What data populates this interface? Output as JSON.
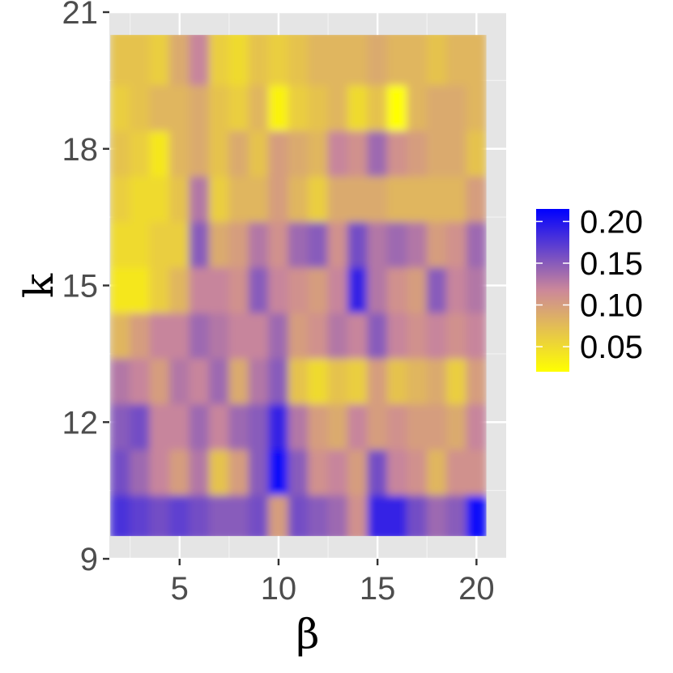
{
  "chart_data": {
    "type": "heatmap",
    "title": "",
    "xlabel": "β",
    "ylabel": "k",
    "x": [
      2,
      3,
      4,
      5,
      6,
      7,
      8,
      9,
      10,
      11,
      12,
      13,
      14,
      15,
      16,
      17,
      18,
      19,
      20
    ],
    "y": [
      10,
      11,
      12,
      13,
      14,
      15,
      16,
      17,
      18,
      19,
      20
    ],
    "xlim": [
      1.45,
      21.5
    ],
    "ylim": [
      9,
      21
    ],
    "xticks": [
      "5",
      "10",
      "15",
      "20"
    ],
    "yticks": [
      "9",
      "12",
      "15",
      "18",
      "21"
    ],
    "z": [
      [
        0.18,
        0.17,
        0.16,
        0.17,
        0.16,
        0.15,
        0.15,
        0.16,
        0.1,
        0.16,
        0.15,
        0.14,
        0.11,
        0.19,
        0.19,
        0.16,
        0.14,
        0.15,
        0.21
      ],
      [
        0.16,
        0.14,
        0.12,
        0.1,
        0.13,
        0.07,
        0.1,
        0.15,
        0.21,
        0.15,
        0.11,
        0.12,
        0.1,
        0.16,
        0.12,
        0.11,
        0.08,
        0.11,
        0.11
      ],
      [
        0.15,
        0.16,
        0.12,
        0.12,
        0.14,
        0.12,
        0.14,
        0.15,
        0.19,
        0.13,
        0.1,
        0.09,
        0.12,
        0.1,
        0.11,
        0.1,
        0.1,
        0.09,
        0.12
      ],
      [
        0.13,
        0.12,
        0.1,
        0.13,
        0.12,
        0.14,
        0.09,
        0.13,
        0.15,
        0.07,
        0.05,
        0.07,
        0.06,
        0.1,
        0.07,
        0.08,
        0.09,
        0.06,
        0.1
      ],
      [
        0.08,
        0.1,
        0.12,
        0.12,
        0.14,
        0.13,
        0.12,
        0.12,
        0.14,
        0.1,
        0.11,
        0.13,
        0.12,
        0.15,
        0.12,
        0.11,
        0.12,
        0.11,
        0.12
      ],
      [
        0.04,
        0.04,
        0.06,
        0.08,
        0.12,
        0.12,
        0.11,
        0.15,
        0.12,
        0.11,
        0.1,
        0.12,
        0.19,
        0.13,
        0.11,
        0.1,
        0.15,
        0.12,
        0.13
      ],
      [
        0.05,
        0.05,
        0.06,
        0.06,
        0.15,
        0.09,
        0.1,
        0.13,
        0.11,
        0.14,
        0.15,
        0.11,
        0.16,
        0.13,
        0.14,
        0.13,
        0.1,
        0.11,
        0.14
      ],
      [
        0.06,
        0.05,
        0.05,
        0.07,
        0.13,
        0.06,
        0.08,
        0.08,
        0.1,
        0.08,
        0.06,
        0.09,
        0.09,
        0.09,
        0.08,
        0.08,
        0.08,
        0.08,
        0.1
      ],
      [
        0.07,
        0.06,
        0.04,
        0.08,
        0.09,
        0.07,
        0.09,
        0.07,
        0.1,
        0.09,
        0.08,
        0.12,
        0.11,
        0.14,
        0.11,
        0.1,
        0.09,
        0.09,
        0.07
      ],
      [
        0.06,
        0.07,
        0.08,
        0.08,
        0.09,
        0.07,
        0.06,
        0.08,
        0.03,
        0.06,
        0.07,
        0.08,
        0.05,
        0.07,
        0.02,
        0.08,
        0.09,
        0.09,
        0.08
      ],
      [
        0.07,
        0.07,
        0.06,
        0.09,
        0.12,
        0.06,
        0.05,
        0.07,
        0.06,
        0.07,
        0.08,
        0.08,
        0.08,
        0.09,
        0.08,
        0.08,
        0.07,
        0.08,
        0.08
      ]
    ],
    "color_scale": {
      "low": "#ffff00",
      "mid": "#cc8899",
      "high": "#0000ff",
      "min": 0.02,
      "max": 0.215
    },
    "legend": {
      "position": "right",
      "labels": [
        "0.20",
        "0.15",
        "0.10",
        "0.05"
      ],
      "values": [
        0.2,
        0.15,
        0.1,
        0.05
      ]
    },
    "grid": true,
    "panel_background": "#e5e5e5"
  }
}
